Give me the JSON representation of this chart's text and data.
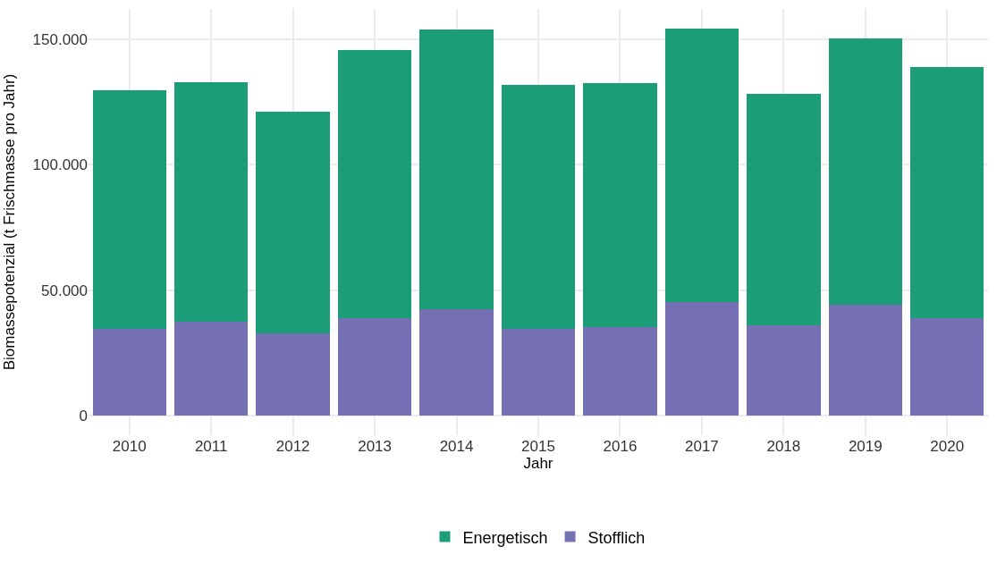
{
  "chart_data": {
    "type": "bar",
    "stacked": true,
    "xlabel": "Jahr",
    "ylabel": "Biomassepotenzial (t Frischmasse pro Jahr)",
    "categories": [
      "2010",
      "2011",
      "2012",
      "2013",
      "2014",
      "2015",
      "2016",
      "2017",
      "2018",
      "2019",
      "2020"
    ],
    "series": [
      {
        "name": "Stofflich",
        "color": "#7570b3",
        "values": [
          34800,
          37600,
          32700,
          39000,
          42500,
          34800,
          35500,
          45200,
          36200,
          44200,
          39000
        ]
      },
      {
        "name": "Energetisch",
        "color": "#1b9e77",
        "values": [
          94700,
          95400,
          88400,
          106500,
          111300,
          96800,
          96800,
          109000,
          91900,
          106200,
          99900
        ]
      }
    ],
    "ylim": [
      -7700,
      162000
    ],
    "yticks": [
      {
        "value": 0,
        "label": "0"
      },
      {
        "value": 50000,
        "label": "50.000"
      },
      {
        "value": 100000,
        "label": "100.000"
      },
      {
        "value": 150000,
        "label": "150.000"
      }
    ],
    "grid": true,
    "legend": "bottom"
  }
}
